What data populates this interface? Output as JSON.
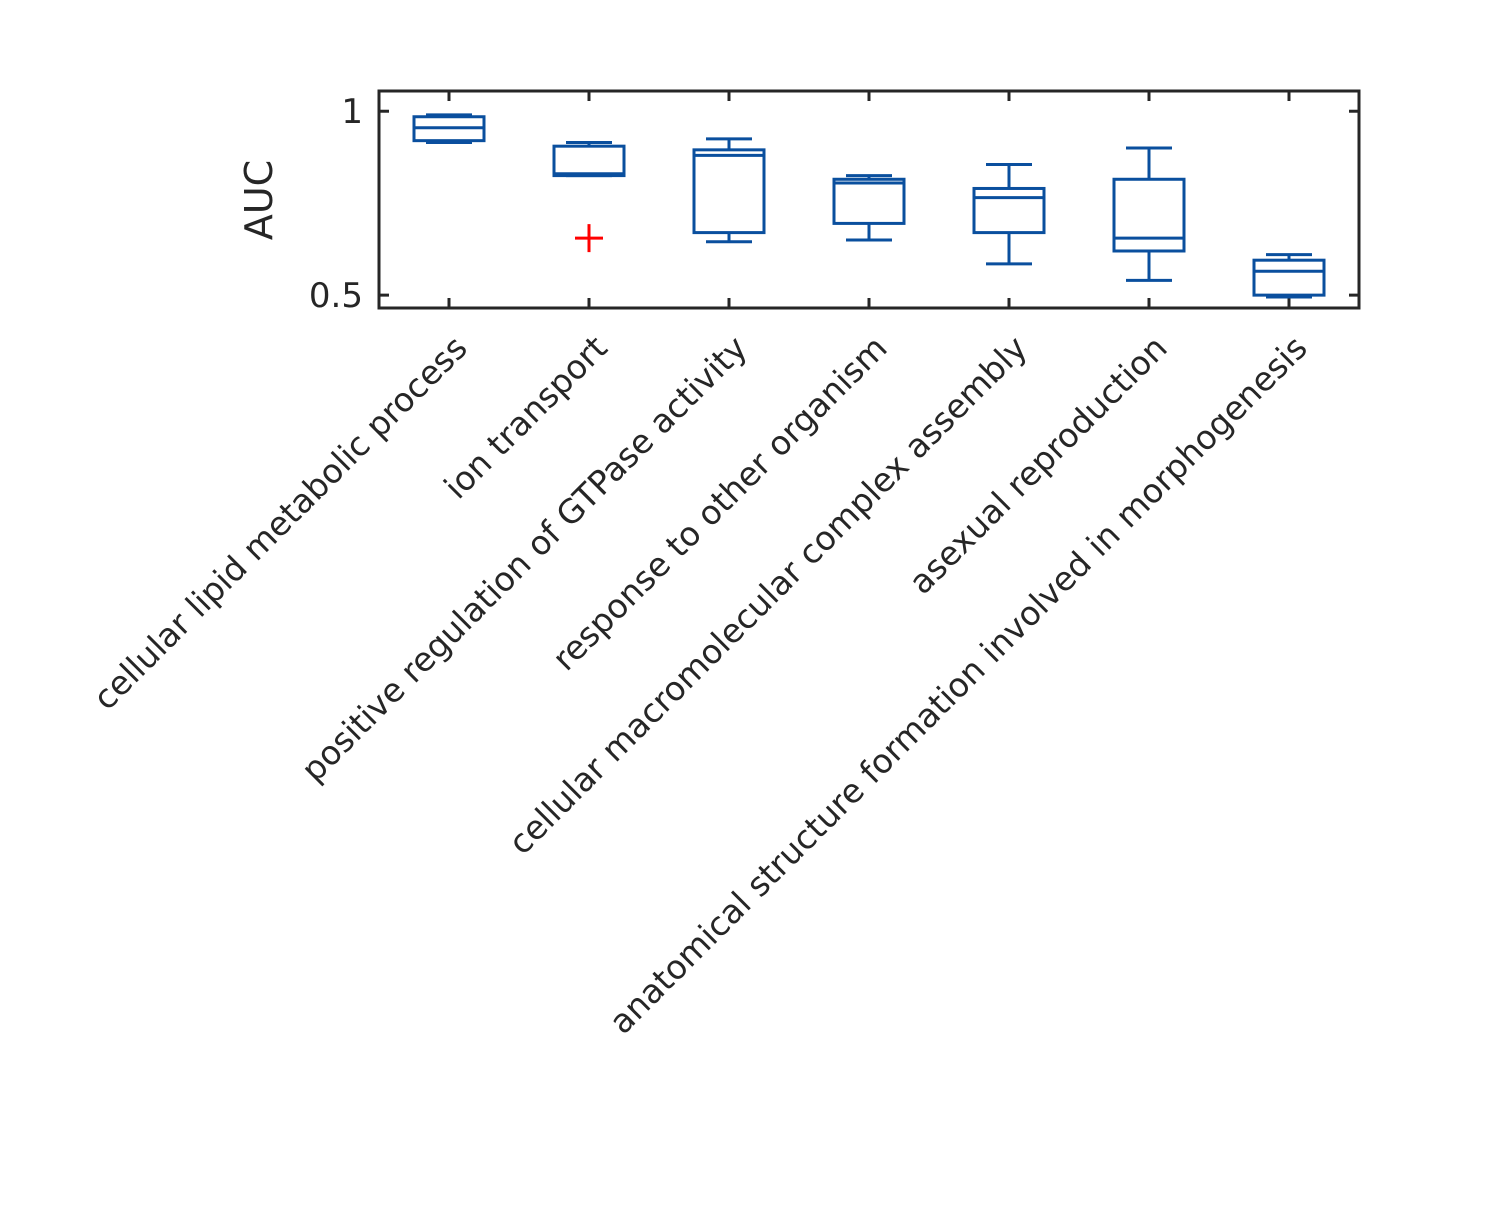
{
  "chart_data": {
    "type": "box",
    "ylabel": "AUC",
    "ylim": [
      0.465,
      1.055
    ],
    "yticks": [
      {
        "value": 0.5,
        "label": "0.5"
      },
      {
        "value": 1.0,
        "label": "1"
      }
    ],
    "categories": [
      "cellular lipid metabolic process",
      "ion transport",
      "positive regulation of GTPase activity",
      "response to other organism",
      "cellular macromolecular complex assembly",
      "asexual reproduction",
      "anatomical structure formation involved in morphogenesis"
    ],
    "boxes": [
      {
        "whisker_low": 0.915,
        "q1": 0.92,
        "median": 0.955,
        "q3": 0.985,
        "whisker_high": 0.99,
        "outliers": []
      },
      {
        "whisker_low": 0.825,
        "q1": 0.825,
        "median": 0.83,
        "q3": 0.905,
        "whisker_high": 0.915,
        "outliers": [
          0.655
        ]
      },
      {
        "whisker_low": 0.645,
        "q1": 0.67,
        "median": 0.88,
        "q3": 0.895,
        "whisker_high": 0.925,
        "outliers": []
      },
      {
        "whisker_low": 0.65,
        "q1": 0.695,
        "median": 0.805,
        "q3": 0.815,
        "whisker_high": 0.825,
        "outliers": []
      },
      {
        "whisker_low": 0.585,
        "q1": 0.67,
        "median": 0.765,
        "q3": 0.79,
        "whisker_high": 0.855,
        "outliers": []
      },
      {
        "whisker_low": 0.54,
        "q1": 0.62,
        "median": 0.655,
        "q3": 0.815,
        "whisker_high": 0.9,
        "outliers": []
      },
      {
        "whisker_low": 0.495,
        "q1": 0.5,
        "median": 0.565,
        "q3": 0.595,
        "whisker_high": 0.61,
        "outliers": []
      }
    ],
    "grid": false,
    "colors": {
      "box": "#0a4f9e",
      "outlier": "#ff0000",
      "axis": "#262626"
    }
  }
}
